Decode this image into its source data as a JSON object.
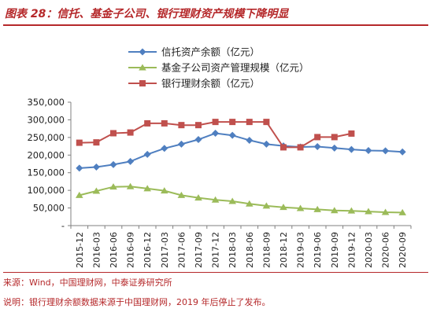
{
  "figure_title": "图表 28：信托、基金子公司、银行理财资产规模下降明显",
  "source_text": "来源：Wind，中国理财网，中泰证券研究所",
  "note_text": "说明：银行理财余额数据来源于中国理财网，2019 年后停止了发布。",
  "colors": {
    "trust": "#4f7fc0",
    "fund": "#9bbb59",
    "bank": "#c0504d",
    "accent": "#b5282a",
    "axis": "#808080"
  },
  "chart_data": {
    "type": "line",
    "categories": [
      "2015-12",
      "2016-03",
      "2016-06",
      "2016-09",
      "2016-12",
      "2017-03",
      "2017-06",
      "2017-09",
      "2017-12",
      "2018-03",
      "2018-06",
      "2018-09",
      "2018-12",
      "2019-03",
      "2019-06",
      "2019-09",
      "2019-12",
      "2020-03",
      "2020-06",
      "2020-09"
    ],
    "y_ticks": [
      "350,000",
      "300,000",
      "250,000",
      "200,000",
      "150,000",
      "100,000",
      "50,000",
      "-"
    ],
    "ylim": [
      0,
      350000
    ],
    "legend_position": "top-center",
    "grid": false,
    "series": [
      {
        "name": "信托资产余额（亿元）",
        "marker": "diamond",
        "values": [
          163000,
          166000,
          173000,
          182000,
          202000,
          219000,
          231000,
          244000,
          262000,
          256000,
          242000,
          231000,
          226000,
          223000,
          224000,
          220000,
          216000,
          213000,
          212000,
          209000
        ]
      },
      {
        "name": "基金子公司资产管理规模（亿元）",
        "marker": "triangle",
        "values": [
          86000,
          98000,
          110000,
          111000,
          105000,
          99000,
          86000,
          79000,
          73000,
          69000,
          62000,
          56000,
          52000,
          49000,
          46000,
          43000,
          42000,
          40000,
          38000,
          37000
        ]
      },
      {
        "name": "银行理财余额（亿元）",
        "marker": "square",
        "values": [
          235000,
          236000,
          262000,
          264000,
          290000,
          290000,
          285000,
          285000,
          294000,
          294000,
          294000,
          294000,
          222000,
          222000,
          251000,
          251000,
          261000,
          null,
          null,
          null
        ]
      }
    ]
  }
}
